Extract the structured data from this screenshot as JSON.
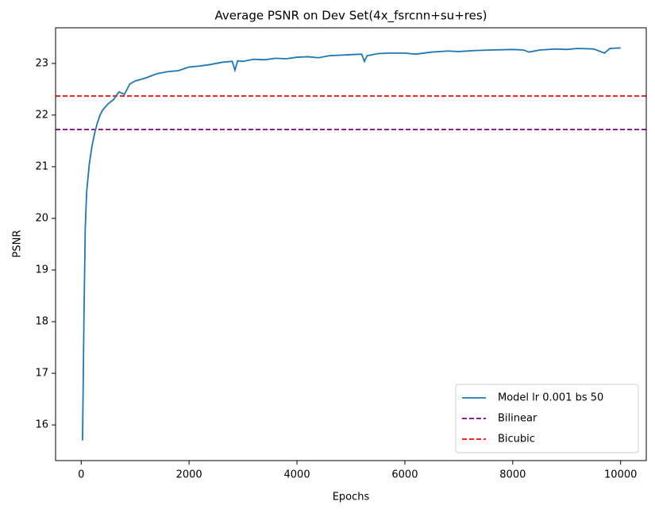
{
  "chart_data": {
    "type": "line",
    "title": "Average PSNR on Dev Set(4x_fsrcnn+su+res)",
    "x_label": "Epochs",
    "y_label": "PSNR",
    "x": [
      25,
      50,
      75,
      100,
      150,
      200,
      250,
      300,
      350,
      400,
      500,
      600,
      700,
      800,
      900,
      1000,
      1200,
      1400,
      1600,
      1800,
      2000,
      2200,
      2400,
      2600,
      2800,
      2850,
      2900,
      3000,
      3200,
      3400,
      3600,
      3800,
      4000,
      4200,
      4400,
      4600,
      4800,
      5000,
      5200,
      5250,
      5300,
      5500,
      5700,
      6000,
      6200,
      6500,
      6800,
      7000,
      7300,
      7600,
      8000,
      8200,
      8300,
      8500,
      8800,
      9000,
      9200,
      9500,
      9700,
      9800,
      10000
    ],
    "series": [
      {
        "name": "Model lr 0.001 bs 50",
        "color": "#1f77b4",
        "values": [
          15.7,
          18.0,
          19.8,
          20.5,
          21.05,
          21.4,
          21.65,
          21.85,
          22.0,
          22.1,
          22.22,
          22.3,
          22.45,
          22.4,
          22.6,
          22.66,
          22.72,
          22.8,
          22.84,
          22.86,
          22.93,
          22.95,
          22.98,
          23.02,
          23.04,
          22.87,
          23.05,
          23.04,
          23.08,
          23.07,
          23.1,
          23.09,
          23.12,
          23.13,
          23.11,
          23.15,
          23.16,
          23.17,
          23.18,
          23.04,
          23.15,
          23.19,
          23.2,
          23.2,
          23.18,
          23.22,
          23.24,
          23.23,
          23.25,
          23.26,
          23.27,
          23.26,
          23.22,
          23.26,
          23.28,
          23.27,
          23.29,
          23.28,
          23.2,
          23.29,
          23.3
        ]
      }
    ],
    "hlines": [
      {
        "name": "Bilinear",
        "color": "purple",
        "value": 21.72
      },
      {
        "name": "Bicubic",
        "color": "red",
        "value": 22.37
      }
    ],
    "xlim": [
      -475,
      10475
    ],
    "ylim": [
      15.31,
      23.69
    ],
    "xticks": [
      0,
      2000,
      4000,
      6000,
      8000,
      10000
    ],
    "yticks": [
      16,
      17,
      18,
      19,
      20,
      21,
      22,
      23
    ],
    "legend": "lower right"
  }
}
